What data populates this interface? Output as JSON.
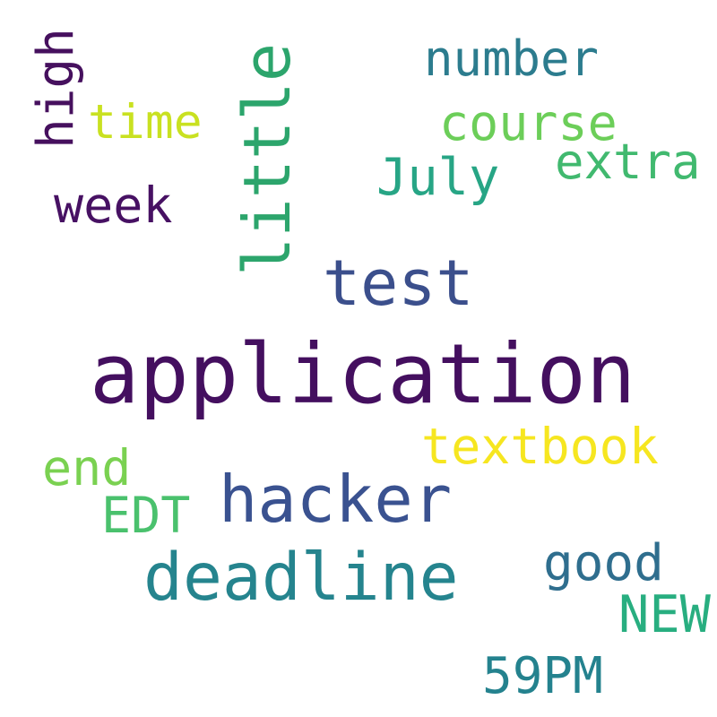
{
  "words": [
    {
      "text": "application",
      "color": "#440f5f"
    },
    {
      "text": "little",
      "color": "#2ca56c"
    },
    {
      "text": "test",
      "color": "#3b4f8c"
    },
    {
      "text": "hacker",
      "color": "#3a5290"
    },
    {
      "text": "deadline",
      "color": "#25848e"
    },
    {
      "text": "high",
      "color": "#46105e"
    },
    {
      "text": "number",
      "color": "#2c7c8e"
    },
    {
      "text": "time",
      "color": "#c9e121"
    },
    {
      "text": "course",
      "color": "#6cce59"
    },
    {
      "text": "extra",
      "color": "#41b96f"
    },
    {
      "text": "July",
      "color": "#27a585"
    },
    {
      "text": "week",
      "color": "#471163"
    },
    {
      "text": "textbook",
      "color": "#f6e620"
    },
    {
      "text": "end",
      "color": "#7ad151"
    },
    {
      "text": "EDT",
      "color": "#4ac16d"
    },
    {
      "text": "good",
      "color": "#2f6e8e"
    },
    {
      "text": "NEW",
      "color": "#28ae80"
    },
    {
      "text": "59PM",
      "color": "#24828e"
    }
  ]
}
